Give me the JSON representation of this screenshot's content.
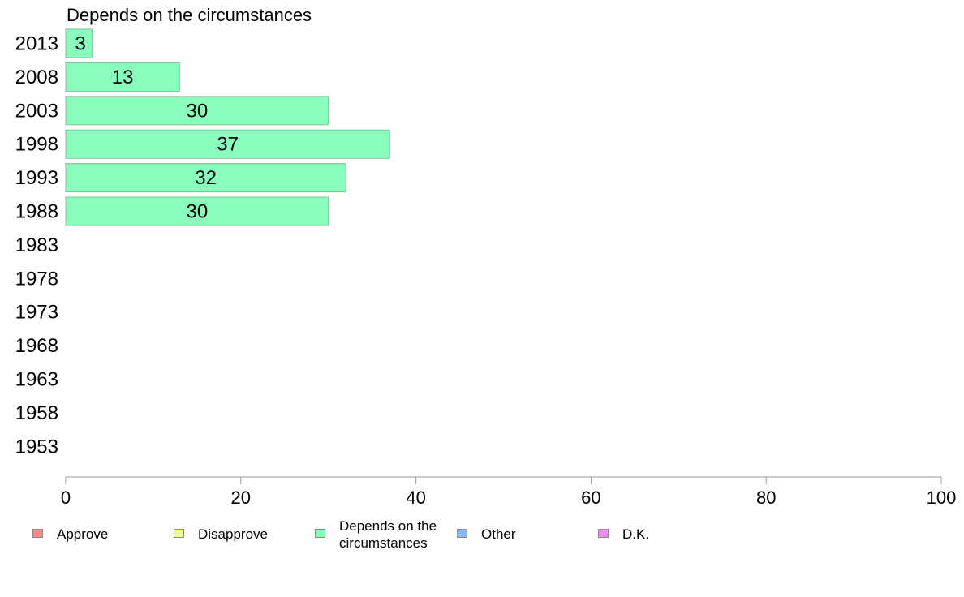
{
  "chart_data": {
    "type": "bar",
    "orientation": "horizontal",
    "title": "Depends on the circumstances",
    "categories": [
      "2013",
      "2008",
      "2003",
      "1998",
      "1993",
      "1988",
      "1983",
      "1978",
      "1973",
      "1968",
      "1963",
      "1958",
      "1953"
    ],
    "series": [
      {
        "name": "Depends on the circumstances",
        "values": [
          3,
          13,
          30,
          37,
          32,
          30,
          null,
          null,
          null,
          null,
          null,
          null,
          null
        ],
        "color": "#8affbd"
      }
    ],
    "xlim": [
      0,
      100
    ],
    "x_ticks": [
      0,
      20,
      40,
      60,
      80,
      100
    ],
    "grid": false,
    "legend_position": "bottom",
    "legend": [
      {
        "label": "Approve",
        "color": "#f28b8b"
      },
      {
        "label": "Disapprove",
        "color": "#e9ff8a"
      },
      {
        "label": "Depends on the circumstances",
        "color": "#8affbd"
      },
      {
        "label": "Other",
        "color": "#8ab8f2"
      },
      {
        "label": "D.K.",
        "color": "#f28bf2"
      }
    ]
  }
}
